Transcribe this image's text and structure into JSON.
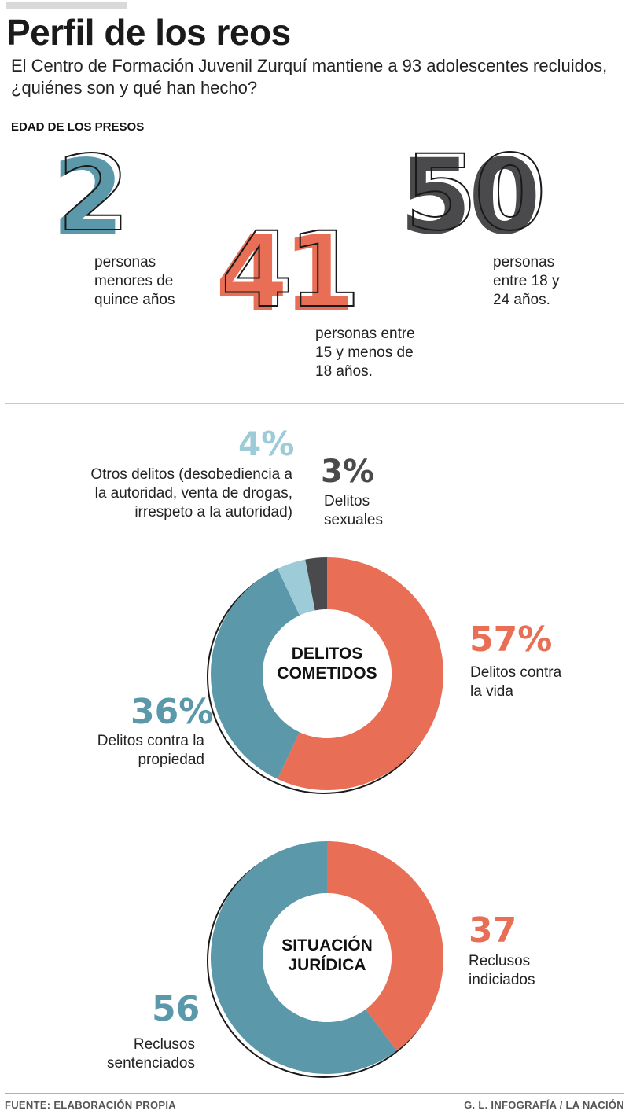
{
  "header": {
    "title": "Perfil de los reos",
    "subtitle": "El Centro de Formación Juvenil Zurquí mantiene a 93 adolescentes recluidos, ¿quiénes son y qué han hecho?"
  },
  "ages": {
    "label": "EDAD DE LOS PRESOS",
    "items": [
      {
        "number": "2",
        "desc_lines": [
          "personas",
          "menores de",
          "quince años"
        ],
        "color": "#5b98a9"
      },
      {
        "number": "41",
        "desc_lines": [
          "personas entre",
          "15 y menos de",
          "18 años."
        ],
        "color": "#e86f55"
      },
      {
        "number": "50",
        "desc_lines": [
          "personas",
          "entre 18 y",
          "24 años."
        ],
        "color": "#4a4a4c"
      }
    ]
  },
  "crimes": {
    "center_lines": [
      "DELITOS",
      "COMETIDOS"
    ],
    "labels": {
      "vida": {
        "pct": "57%",
        "lines": [
          "Delitos contra",
          "la vida"
        ]
      },
      "propiedad": {
        "pct": "36%",
        "lines": [
          "Delitos contra la",
          "propiedad"
        ]
      },
      "otros": {
        "pct": "4%",
        "lines": [
          "Otros delitos (desobediencia a",
          "la autoridad, venta de drogas,",
          "irrespeto a la autoridad)"
        ]
      },
      "sexuales": {
        "pct": "3%",
        "lines": [
          "Delitos",
          "sexuales"
        ]
      }
    }
  },
  "legal": {
    "center_lines": [
      "SITUACIÓN",
      "JURÍDICA"
    ],
    "labels": {
      "indiciados": {
        "value": "37",
        "lines": [
          "Reclusos",
          "indiciados"
        ]
      },
      "sentenciados": {
        "value": "56",
        "lines": [
          "Reclusos",
          "sentenciados"
        ]
      }
    }
  },
  "chart_data": [
    {
      "type": "bar",
      "title": "EDAD DE LOS PRESOS",
      "categories": [
        "personas menores de quince años",
        "personas entre 15 y menos de 18 años.",
        "personas entre 18 y 24 años."
      ],
      "values": [
        2,
        41,
        50
      ]
    },
    {
      "type": "pie",
      "title": "DELITOS COMETIDOS",
      "categories": [
        "Delitos contra la vida",
        "Delitos contra la propiedad",
        "Otros delitos (desobediencia a la autoridad, venta de drogas, irrespeto a la autoridad)",
        "Delitos sexuales"
      ],
      "values": [
        57,
        36,
        4,
        3
      ],
      "colors": [
        "#e86f55",
        "#5b98a9",
        "#9ecbd8",
        "#4a4a4c"
      ]
    },
    {
      "type": "pie",
      "title": "SITUACIÓN JURÍDICA",
      "categories": [
        "Reclusos indiciados",
        "Reclusos sentenciados"
      ],
      "values": [
        37,
        56
      ],
      "colors": [
        "#e86f55",
        "#5b98a9"
      ]
    }
  ],
  "footer": {
    "source": "FUENTE: ELABORACIÓN PROPIA",
    "credit": "G. L. INFOGRAFÍA / LA NACIÓN"
  }
}
